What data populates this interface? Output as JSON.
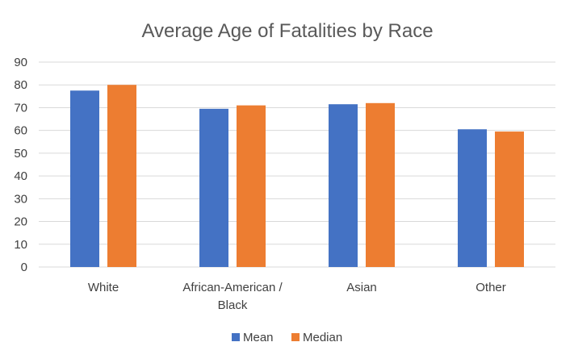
{
  "chart_data": {
    "type": "bar",
    "title": "Average Age of Fatalities by Race",
    "categories": [
      [
        "White"
      ],
      [
        "African-American /",
        "Black"
      ],
      [
        "Asian"
      ],
      [
        "Other"
      ]
    ],
    "series": [
      {
        "name": "Mean",
        "color": "#4472C4",
        "values": [
          77.5,
          69.5,
          71.5,
          60.5
        ]
      },
      {
        "name": "Median",
        "color": "#ED7D31",
        "values": [
          80,
          71,
          72,
          59.5
        ]
      }
    ],
    "ylim": [
      0,
      90
    ],
    "yticks": [
      0,
      10,
      20,
      30,
      40,
      50,
      60,
      70,
      80,
      90
    ],
    "grid": true,
    "legend": "bottom"
  }
}
